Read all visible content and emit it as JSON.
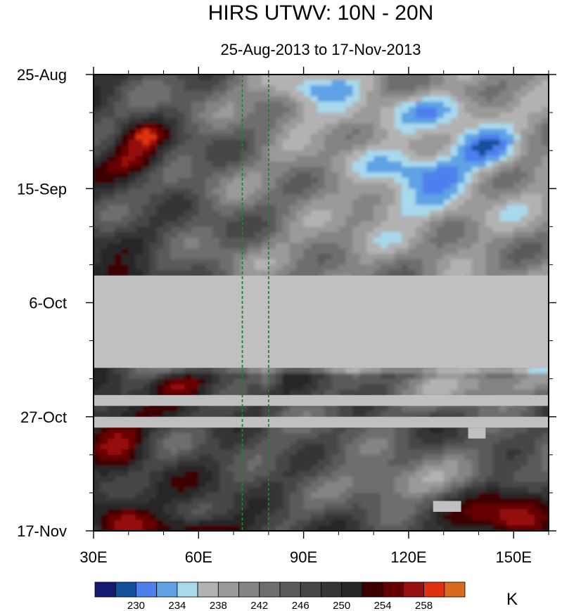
{
  "chart_data": {
    "type": "heatmap",
    "title": "HIRS UTWV: 10N - 20N",
    "subtitle": "25-Aug-2013 to 17-Nov-2013",
    "xlabel": "",
    "ylabel": "",
    "x_ticks": [
      "30E",
      "60E",
      "90E",
      "120E",
      "150E"
    ],
    "x_tick_values": [
      30,
      60,
      90,
      120,
      150
    ],
    "xlim": [
      30,
      160
    ],
    "y_ticks": [
      "25-Aug",
      "15-Sep",
      "6-Oct",
      "27-Oct",
      "17-Nov"
    ],
    "y_tick_days": [
      0,
      21,
      42,
      63,
      84
    ],
    "ylim_days": [
      0,
      84
    ],
    "y_axis_reversed": true,
    "reference_lines_longitude": [
      72.5,
      80
    ],
    "missing_data_color": "#c0c0c0",
    "missing_bands_days": [
      [
        37,
        54
      ],
      [
        59,
        61
      ],
      [
        63,
        65
      ]
    ],
    "missing_patches": [
      {
        "lon": [
          137,
          142
        ],
        "days": [
          65,
          67
        ]
      },
      {
        "lon": [
          127,
          135
        ],
        "days": [
          78.5,
          80.5
        ]
      }
    ],
    "colorbar": {
      "unit": "K",
      "labels": [
        "230",
        "234",
        "238",
        "242",
        "246",
        "250",
        "254",
        "258"
      ],
      "levels": [
        228,
        230,
        232,
        234,
        236,
        238,
        240,
        242,
        244,
        246,
        248,
        250,
        252,
        254,
        256,
        258,
        260
      ],
      "colors": [
        "#141a72",
        "#13509c",
        "#4d7fee",
        "#5fa2e5",
        "#a8d9ec",
        "#b2b2b2",
        "#9a9a9a",
        "#848484",
        "#6e6e6e",
        "#5a5a5a",
        "#464646",
        "#363636",
        "#262626",
        "#3d0000",
        "#660000",
        "#961010",
        "#e03010",
        "#d86a1c"
      ]
    }
  }
}
